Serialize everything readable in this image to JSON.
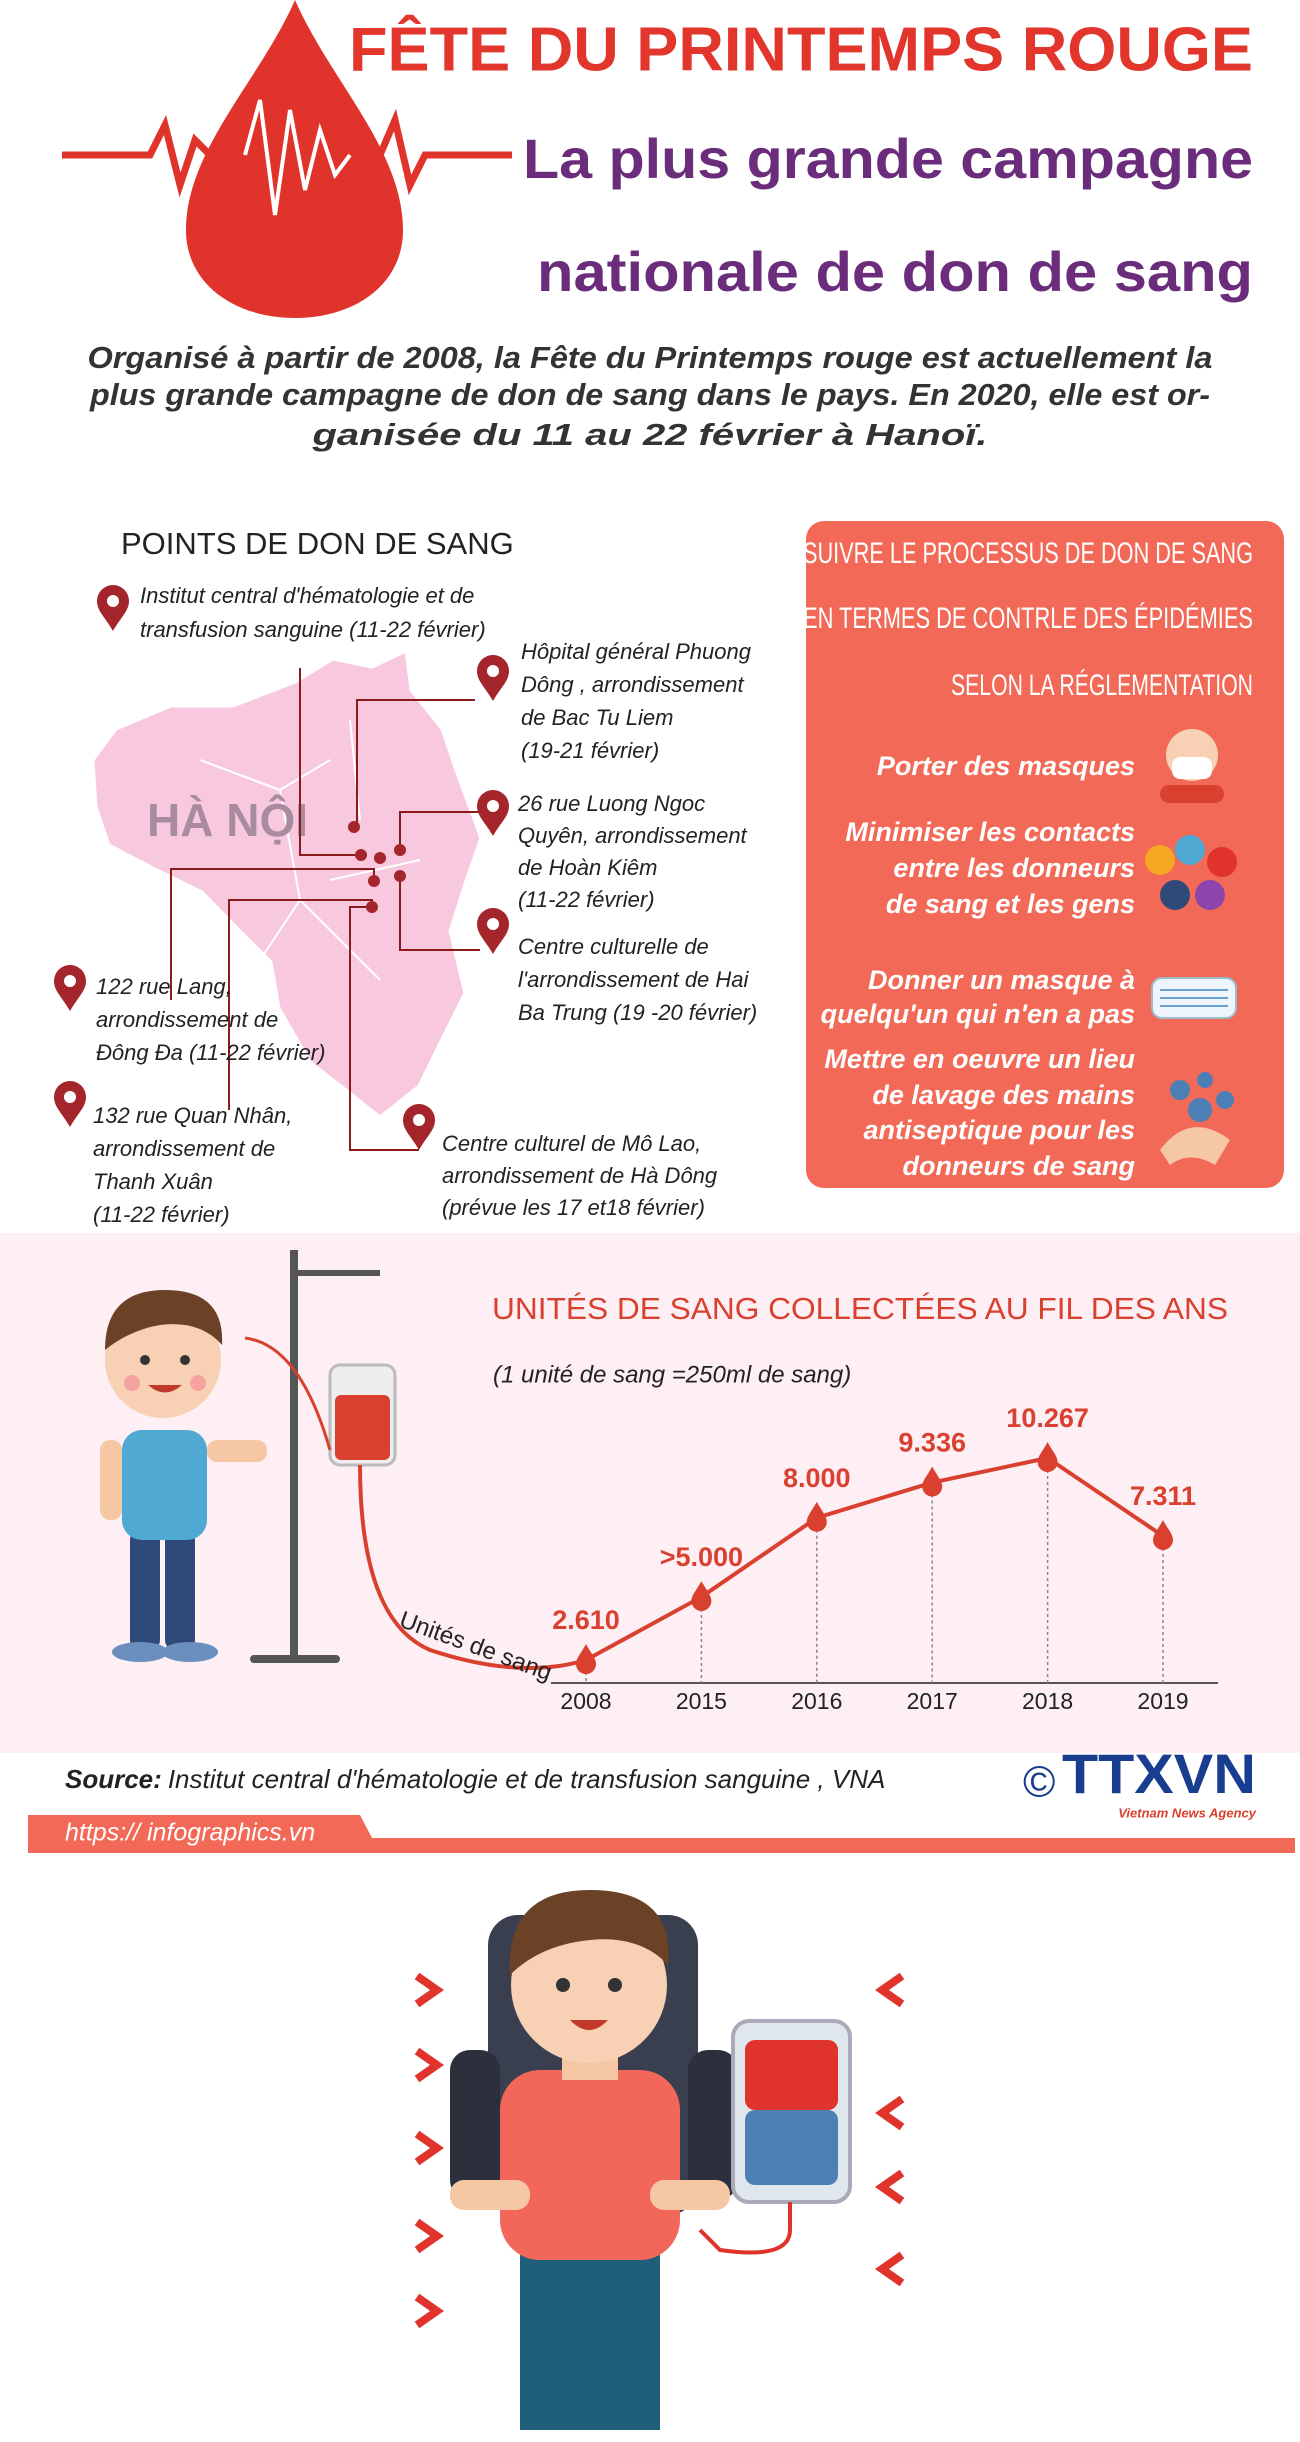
{
  "header": {
    "title": "FÊTE DU PRINTEMPS ROUGE",
    "subtitle_lines": [
      "La plus grande campagne",
      "nationale de don de sang"
    ]
  },
  "intro": {
    "lines": [
      "Organisé à partir de 2008, la Fête du Printemps rouge est actuellement la",
      "plus grande campagne de don de sang dans le pays. En 2020, elle est or-",
      "ganisée  du 11 au 22 février à Hanoï."
    ]
  },
  "locations": {
    "title": "POINTS DE DON DE SANG",
    "map_label": "HÀ NỘI",
    "points": [
      {
        "lines": [
          "Institut central d'hématologie et de",
          "transfusion sanguine (11-22 février)"
        ]
      },
      {
        "lines": [
          "Hôpital général Phuong",
          "Dông , arrondissement",
          "de Bac Tu Liem",
          "(19-21 février)"
        ]
      },
      {
        "lines": [
          "26  rue Luong Ngoc",
          "Quyên, arrondissement",
          "de  Hoàn Kiêm",
          "(11-22 février)"
        ]
      },
      {
        "lines": [
          "Centre culturelle de",
          "l'arrondissement de Hai",
          "Ba Trung (19 -20 février)"
        ]
      },
      {
        "lines": [
          "122 rue Lang,",
          "arrondissement de",
          "Đông Đa (11-22 février)"
        ]
      },
      {
        "lines": [
          "132  rue Quan Nhân,",
          "arrondissement de",
          "Thanh Xuân",
          " (11-22 février)"
        ]
      },
      {
        "lines": [
          "Centre culturel de Mô Lao,",
          "arrondissement de Hà Dông",
          "(prévue les 17 et18 février)"
        ]
      }
    ]
  },
  "rules": {
    "title_lines": [
      "SUIVRE LE PROCESSUS DE DON DE SANG",
      "EN TERMES DE CONTRLE DES ÉPIDÉMIES",
      "SELON LA RÉGLEMENTATION"
    ],
    "items": [
      {
        "lines": [
          "Porter des masques"
        ]
      },
      {
        "lines": [
          "Minimiser les contacts",
          "entre les donneurs",
          "de sang et les gens"
        ]
      },
      {
        "lines": [
          "Donner un masque à",
          "quelqu'un qui n'en a pas"
        ]
      },
      {
        "lines": [
          "Mettre en oeuvre un lieu",
          "de lavage des mains",
          "antiseptique pour les",
          "donneurs de sang"
        ]
      }
    ]
  },
  "chart_data": {
    "type": "line",
    "title": "UNITÉS DE SANG COLLECTÉES AU FIL DES ANS",
    "subtitle": "(1 unité de sang =250ml de sang)",
    "annotation": "Unités de sang",
    "categories": [
      "2008",
      "2015",
      "2016",
      "2017",
      "2018",
      "2019"
    ],
    "values": [
      2610,
      5000,
      8000,
      9336,
      10267,
      7311
    ],
    "value_labels": [
      "2.610",
      ">5.000",
      "8.000",
      "9.336",
      "10.267",
      "7.311"
    ],
    "color": "#d9402f"
  },
  "footer": {
    "source_label": "Source:",
    "source_text": "Institut central d'hématologie et de transfusion sanguine , VNA",
    "copyright": "©",
    "logo": "TTXVN",
    "logo_sub": "Vietnam News Agency",
    "url": "https:// infographics.vn"
  }
}
